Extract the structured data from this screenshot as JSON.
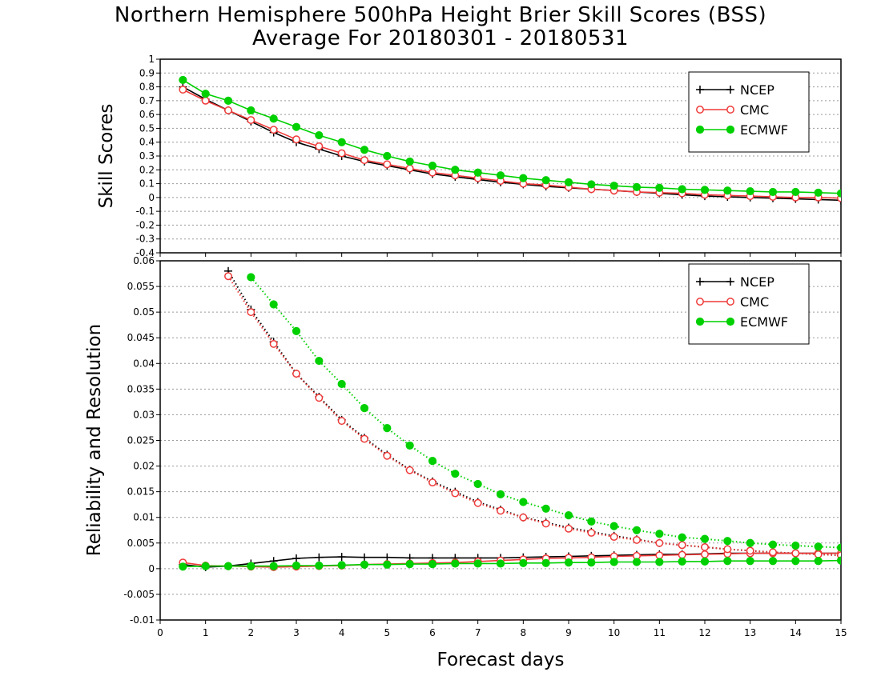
{
  "title": "Northern Hemisphere 500hPa Height Brier Skill Scores (BSS)",
  "subtitle": "Average For 20180301 - 20180531",
  "xlabel": "Forecast days",
  "colors": {
    "NCEP": "#000000",
    "CMC": "#ef3a3a",
    "ECMWF": "#00d000",
    "grid": "#9a9a9a"
  },
  "chart_data": [
    {
      "type": "line",
      "ylabel": "Skill Scores",
      "xlim": [
        0,
        15
      ],
      "ylim": [
        -0.4,
        1
      ],
      "x_ticks": [
        "0",
        "1",
        "2",
        "3",
        "4",
        "5",
        "6",
        "7",
        "8",
        "9",
        "10",
        "11",
        "12",
        "13",
        "14",
        "15"
      ],
      "y_ticks": [
        "-0.4",
        "-0.3",
        "-0.2",
        "-0.1",
        "0",
        "0.1",
        "0.2",
        "0.3",
        "0.4",
        "0.5",
        "0.6",
        "0.7",
        "0.8",
        "0.9",
        "1"
      ],
      "grid": true,
      "legend_position": "top-right",
      "x": [
        0.5,
        1,
        1.5,
        2,
        2.5,
        3,
        3.5,
        4,
        4.5,
        5,
        5.5,
        6,
        6.5,
        7,
        7.5,
        8,
        8.5,
        9,
        9.5,
        10,
        10.5,
        11,
        11.5,
        12,
        12.5,
        13,
        13.5,
        14,
        14.5,
        15
      ],
      "series": [
        {
          "name": "NCEP",
          "marker": "plus",
          "style": "solid",
          "values": [
            0.8,
            0.71,
            0.63,
            0.55,
            0.47,
            0.4,
            0.35,
            0.3,
            0.26,
            0.23,
            0.2,
            0.17,
            0.15,
            0.13,
            0.11,
            0.095,
            0.08,
            0.07,
            0.06,
            0.05,
            0.04,
            0.03,
            0.02,
            0.01,
            0.005,
            0,
            -0.005,
            -0.01,
            -0.015,
            -0.02
          ]
        },
        {
          "name": "CMC",
          "marker": "open-circle",
          "style": "solid",
          "values": [
            0.78,
            0.7,
            0.63,
            0.56,
            0.49,
            0.42,
            0.37,
            0.32,
            0.27,
            0.24,
            0.21,
            0.18,
            0.16,
            0.14,
            0.12,
            0.1,
            0.09,
            0.075,
            0.06,
            0.05,
            0.04,
            0.035,
            0.03,
            0.02,
            0.015,
            0.01,
            0.005,
            0,
            0,
            -0.005
          ]
        },
        {
          "name": "ECMWF",
          "marker": "filled-circle",
          "style": "solid",
          "values": [
            0.85,
            0.75,
            0.7,
            0.63,
            0.57,
            0.51,
            0.45,
            0.4,
            0.345,
            0.3,
            0.26,
            0.23,
            0.2,
            0.18,
            0.16,
            0.14,
            0.125,
            0.11,
            0.095,
            0.085,
            0.075,
            0.07,
            0.06,
            0.055,
            0.05,
            0.045,
            0.04,
            0.04,
            0.035,
            0.03
          ]
        }
      ]
    },
    {
      "type": "line",
      "ylabel": "Reliability and Resolution",
      "xlim": [
        0,
        15
      ],
      "ylim": [
        -0.01,
        0.06
      ],
      "x_ticks": [
        "0",
        "1",
        "2",
        "3",
        "4",
        "5",
        "6",
        "7",
        "8",
        "9",
        "10",
        "11",
        "12",
        "13",
        "14",
        "15"
      ],
      "y_ticks": [
        "-0.01",
        "-0.005",
        "0",
        "0.005",
        "0.01",
        "0.015",
        "0.02",
        "0.025",
        "0.03",
        "0.035",
        "0.04",
        "0.045",
        "0.05",
        "0.055",
        "0.06"
      ],
      "grid": true,
      "legend_position": "top-right",
      "x": [
        0.5,
        1,
        1.5,
        2,
        2.5,
        3,
        3.5,
        4,
        4.5,
        5,
        5.5,
        6,
        6.5,
        7,
        7.5,
        8,
        8.5,
        9,
        9.5,
        10,
        10.5,
        11,
        11.5,
        12,
        12.5,
        13,
        13.5,
        14,
        14.5,
        15
      ],
      "series": [
        {
          "name": "NCEP",
          "marker": "plus",
          "style": "solid",
          "values": [
            0.0008,
            0.0003,
            0.0005,
            0.001,
            0.0015,
            0.002,
            0.0022,
            0.0023,
            0.0022,
            0.0022,
            0.0021,
            0.0021,
            0.0021,
            0.0021,
            0.0021,
            0.0022,
            0.0023,
            0.0024,
            0.0025,
            0.0026,
            0.0027,
            0.0028,
            0.0028,
            0.0029,
            0.003,
            0.003,
            0.003,
            0.003,
            0.003,
            0.003
          ]
        },
        {
          "name": "NCEP",
          "marker": "plus",
          "style": "dotted",
          "values": [
            null,
            null,
            0.058,
            0.0505,
            0.0442,
            0.038,
            0.0335,
            0.029,
            0.0255,
            0.0222,
            0.0193,
            0.017,
            0.015,
            0.013,
            0.0115,
            0.01,
            0.009,
            0.008,
            0.0072,
            0.0064,
            0.0057,
            0.005,
            0.0046,
            0.0042,
            0.0038,
            0.0035,
            0.0032,
            0.003,
            0.0028,
            0.0026
          ]
        },
        {
          "name": "CMC",
          "marker": "open-circle",
          "style": "solid",
          "values": [
            0.0012,
            0.0006,
            0.0005,
            0.0004,
            0.0003,
            0.0004,
            0.0005,
            0.0006,
            0.0008,
            0.0009,
            0.001,
            0.0011,
            0.0012,
            0.0014,
            0.0016,
            0.0018,
            0.002,
            0.0021,
            0.0022,
            0.0024,
            0.0025,
            0.0026,
            0.0027,
            0.0028,
            0.0029,
            0.003,
            0.003,
            0.003,
            0.003,
            0.003
          ]
        },
        {
          "name": "CMC",
          "marker": "open-circle",
          "style": "dotted",
          "values": [
            null,
            null,
            0.057,
            0.05,
            0.0438,
            0.038,
            0.0333,
            0.0288,
            0.0253,
            0.022,
            0.0192,
            0.0168,
            0.0147,
            0.0128,
            0.0113,
            0.01,
            0.0088,
            0.0078,
            0.007,
            0.0062,
            0.0056,
            0.005,
            0.0046,
            0.0042,
            0.0038,
            0.0035,
            0.0032,
            0.003,
            0.0028,
            0.0026
          ]
        },
        {
          "name": "ECMWF",
          "marker": "filled-circle",
          "style": "solid",
          "values": [
            0.0004,
            0.0005,
            0.0005,
            0.0005,
            0.0005,
            0.0006,
            0.0006,
            0.0007,
            0.0008,
            0.0008,
            0.0009,
            0.0009,
            0.001,
            0.001,
            0.001,
            0.0011,
            0.0011,
            0.0012,
            0.0012,
            0.0013,
            0.0013,
            0.0013,
            0.0014,
            0.0014,
            0.0015,
            0.0015,
            0.0015,
            0.0015,
            0.0015,
            0.0016
          ]
        },
        {
          "name": "ECMWF",
          "marker": "filled-circle",
          "style": "dotted",
          "values": [
            null,
            null,
            null,
            0.0568,
            0.0515,
            0.0463,
            0.0405,
            0.036,
            0.0313,
            0.0274,
            0.024,
            0.021,
            0.0185,
            0.0165,
            0.0145,
            0.013,
            0.0117,
            0.0104,
            0.0092,
            0.0083,
            0.0075,
            0.0068,
            0.0061,
            0.0058,
            0.0054,
            0.005,
            0.0047,
            0.0045,
            0.0043,
            0.0041
          ]
        }
      ]
    }
  ]
}
